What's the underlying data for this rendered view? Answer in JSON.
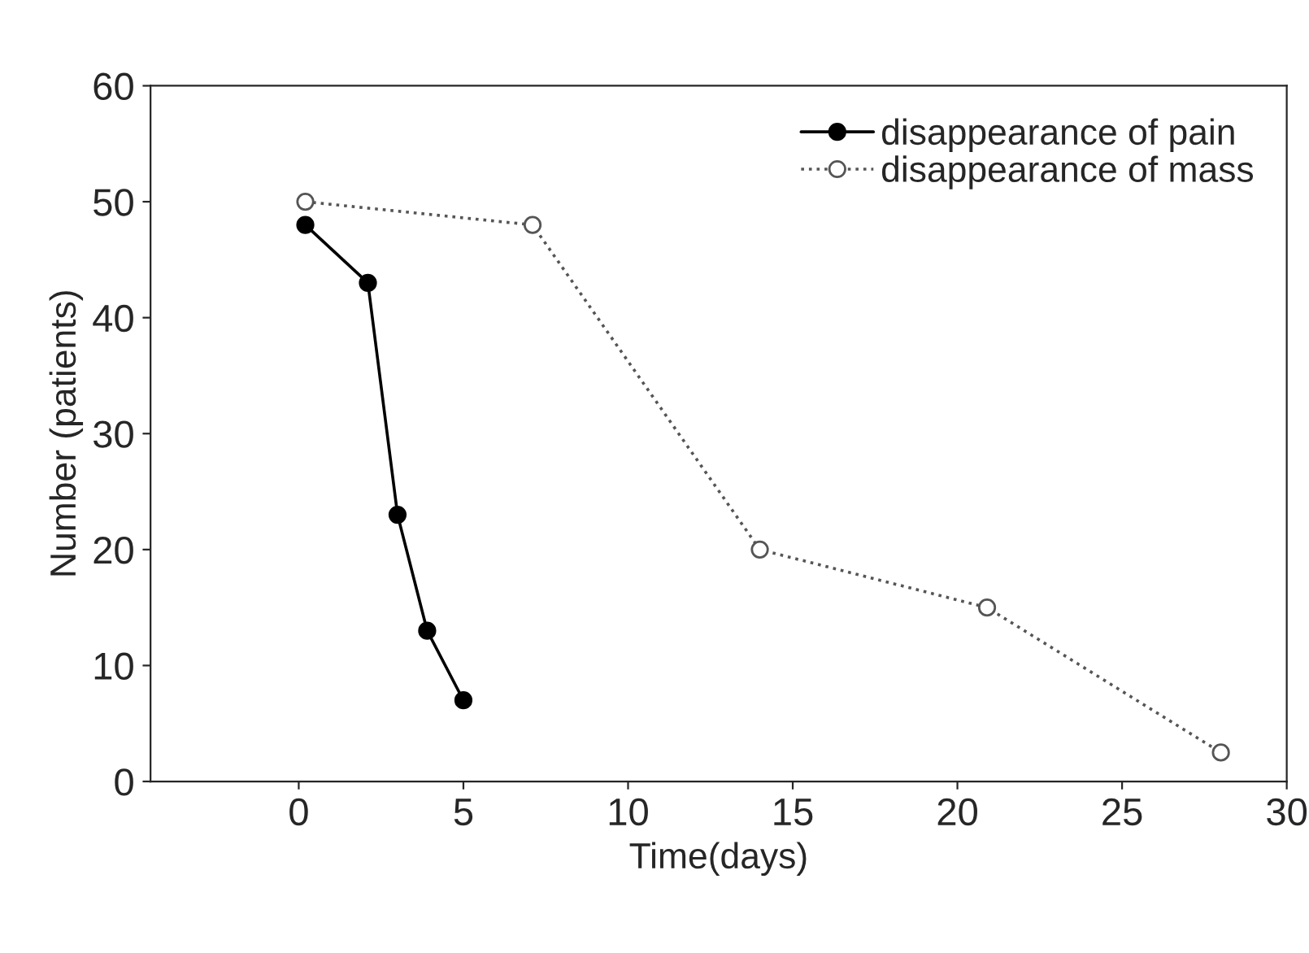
{
  "chart_data": {
    "type": "line",
    "xlabel": "Time(days)",
    "ylabel": "Number (patients)",
    "xlim": [
      -4.5,
      30
    ],
    "xticks": [
      0,
      5,
      10,
      15,
      20,
      25,
      30
    ],
    "ylim": [
      0,
      60
    ],
    "yticks": [
      0,
      10,
      20,
      30,
      40,
      50,
      60
    ],
    "grid": false,
    "legend": "top right",
    "series": [
      {
        "name": "disappearance of pain",
        "color": "#000000",
        "marker": "circle",
        "line_style": "solid",
        "x": [
          0.2,
          2.1,
          3.0,
          3.9,
          5.0
        ],
        "values": [
          48,
          43,
          23,
          13,
          7
        ]
      },
      {
        "name": "disappearance of mass",
        "color": "#555555",
        "marker": "circle",
        "line_style": "dotted",
        "x": [
          0.2,
          7.1,
          14.0,
          20.9,
          28.0
        ],
        "values": [
          50,
          48,
          20,
          15,
          2.5
        ]
      }
    ]
  }
}
